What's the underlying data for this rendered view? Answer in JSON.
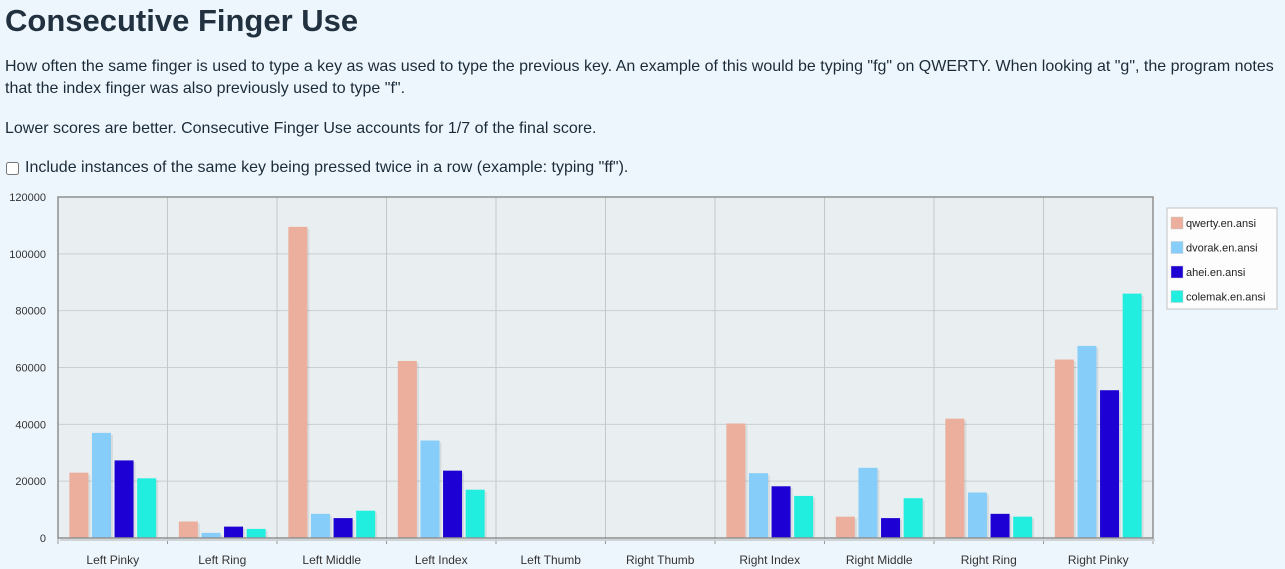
{
  "page": {
    "title": "Consecutive Finger Use",
    "description": "How often the same finger is used to type a key as was used to type the previous key. An example of this would be typing \"fg\" on QWERTY. When looking at \"g\", the program notes that the index finger was also previously used to type \"f\".",
    "note": "Lower scores are better. Consecutive Finger Use accounts for 1/7 of the final score.",
    "checkbox_label": "Include instances of the same key being pressed twice in a row (example: typing \"ff\").",
    "checkbox_checked": false
  },
  "chart_data": {
    "type": "bar",
    "categories": [
      "Left Pinky",
      "Left Ring",
      "Left Middle",
      "Left Index",
      "Left Thumb",
      "Right Thumb",
      "Right Index",
      "Right Middle",
      "Right Ring",
      "Right Pinky"
    ],
    "ylim": [
      0,
      120000
    ],
    "yticks": [
      "0",
      "20000",
      "40000",
      "60000",
      "80000",
      "100000",
      "120000"
    ],
    "grid": true,
    "legend_position": "right",
    "series": [
      {
        "name": "qwerty.en.ansi",
        "color": "#ecaf9d",
        "values": [
          23000,
          5800,
          109500,
          62300,
          0,
          0,
          40300,
          7500,
          42000,
          62800
        ]
      },
      {
        "name": "dvorak.en.ansi",
        "color": "#87cdfa",
        "values": [
          37000,
          1800,
          8500,
          34300,
          0,
          0,
          22800,
          24700,
          16000,
          67600
        ]
      },
      {
        "name": "ahei.en.ansi",
        "color": "#1c00d4",
        "values": [
          27300,
          4000,
          7000,
          23700,
          0,
          0,
          18200,
          7000,
          8500,
          52000
        ]
      },
      {
        "name": "colemak.en.ansi",
        "color": "#22eedf",
        "values": [
          21000,
          3200,
          9600,
          17000,
          0,
          0,
          14800,
          14000,
          7500,
          86000
        ]
      }
    ]
  }
}
